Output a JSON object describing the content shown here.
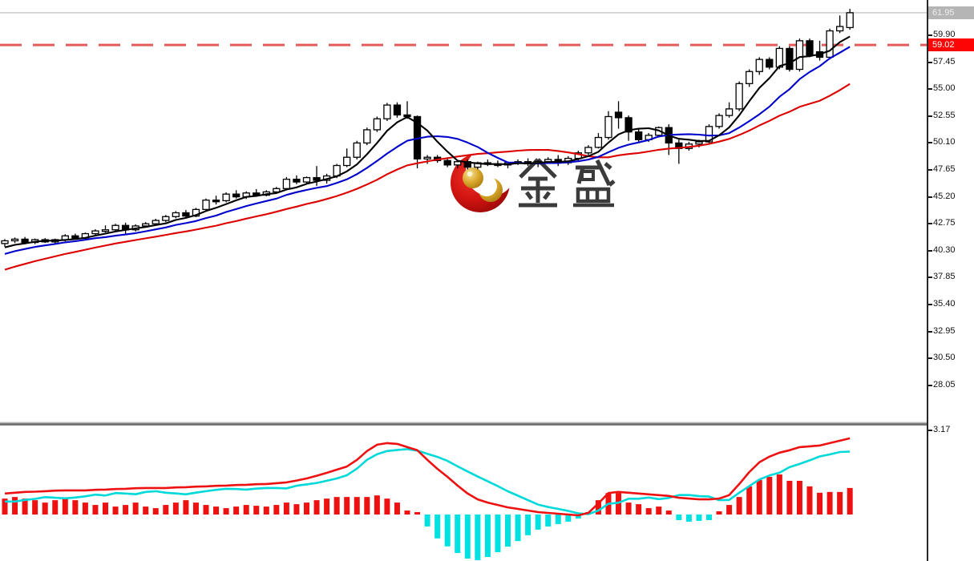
{
  "watermark": {
    "text": "金 盛"
  },
  "price_axis": {
    "tick_labels": [
      "59.90",
      "57.45",
      "55.00",
      "52.55",
      "50.10",
      "47.65",
      "45.20",
      "42.75",
      "40.30",
      "37.85",
      "35.40",
      "32.95",
      "30.50",
      "28.05"
    ],
    "current_price_badge": "61.95",
    "alert_price_badge": "59.02"
  },
  "indicator_axis": {
    "tick_label": "3.17"
  },
  "colors": {
    "up_candle": "#ffffff",
    "down_candle": "#000000",
    "candle_outline": "#000000",
    "ma_fast": "#000000",
    "ma_mid": "#0000cc",
    "ma_slow": "#dd0000",
    "macd_dif": "#ee1111",
    "macd_dea": "#00d9d9",
    "hist_pos": "#ee1111",
    "hist_neg": "#00e2e2",
    "alert_line": "#e45b5b",
    "current_line": "#cbcbcb",
    "logo_red_dark": "#8f0606",
    "logo_red": "#e32016",
    "logo_gold": "#c9971c"
  },
  "chart_data": {
    "type": "candlestick",
    "price_panel": {
      "title": "",
      "y_ticks": [
        59.9,
        57.45,
        55.0,
        52.55,
        50.1,
        47.65,
        45.2,
        42.75,
        40.3,
        37.85,
        35.4,
        32.95,
        30.5,
        28.05
      ],
      "ylim": [
        26.8,
        63.1
      ],
      "horizontal_lines": [
        {
          "value": 61.95,
          "style": "solid"
        },
        {
          "value": 59.02,
          "style": "dashed"
        }
      ],
      "ma_periods": [
        5,
        10,
        20
      ],
      "ma_pre_history": [
        35.5,
        35.8,
        36.1,
        36.4,
        36.7,
        37.0,
        37.3,
        37.6,
        37.9,
        38.2,
        38.5,
        38.8,
        39.1,
        39.4,
        39.7,
        40.0,
        40.2,
        40.4,
        40.5,
        40.7
      ],
      "ohlc": [
        [
          40.95,
          41.35,
          40.65,
          41.2
        ],
        [
          41.2,
          41.5,
          41.0,
          41.35
        ],
        [
          41.35,
          41.55,
          40.9,
          41.05
        ],
        [
          41.05,
          41.4,
          40.9,
          41.3
        ],
        [
          41.3,
          41.45,
          41.0,
          41.1
        ],
        [
          41.1,
          41.4,
          40.95,
          41.3
        ],
        [
          41.3,
          41.8,
          41.15,
          41.65
        ],
        [
          41.65,
          41.85,
          41.3,
          41.45
        ],
        [
          41.45,
          41.95,
          41.35,
          41.85
        ],
        [
          41.85,
          42.25,
          41.7,
          42.1
        ],
        [
          42.1,
          42.6,
          41.95,
          42.2
        ],
        [
          42.2,
          42.75,
          42.1,
          42.6
        ],
        [
          42.6,
          42.85,
          41.85,
          42.2
        ],
        [
          42.2,
          42.7,
          42.05,
          42.55
        ],
        [
          42.55,
          42.9,
          42.4,
          42.75
        ],
        [
          42.75,
          43.2,
          42.6,
          43.05
        ],
        [
          43.05,
          43.55,
          42.9,
          43.4
        ],
        [
          43.4,
          43.9,
          43.25,
          43.75
        ],
        [
          43.75,
          44.0,
          43.3,
          43.45
        ],
        [
          43.45,
          44.2,
          43.35,
          44.05
        ],
        [
          44.05,
          45.05,
          43.95,
          44.9
        ],
        [
          44.9,
          45.3,
          44.5,
          44.85
        ],
        [
          44.85,
          45.6,
          44.7,
          45.45
        ],
        [
          45.45,
          45.8,
          45.05,
          45.2
        ],
        [
          45.2,
          45.7,
          45.0,
          45.55
        ],
        [
          45.55,
          45.9,
          45.2,
          45.35
        ],
        [
          45.35,
          45.8,
          45.25,
          45.65
        ],
        [
          45.65,
          46.1,
          45.5,
          45.95
        ],
        [
          45.95,
          47.0,
          45.85,
          46.8
        ],
        [
          46.8,
          47.15,
          46.35,
          46.55
        ],
        [
          46.55,
          47.05,
          46.4,
          46.95
        ],
        [
          46.95,
          48.0,
          46.2,
          46.7
        ],
        [
          46.7,
          47.3,
          46.4,
          47.1
        ],
        [
          47.1,
          48.2,
          46.9,
          48.05
        ],
        [
          48.05,
          49.6,
          47.9,
          48.8
        ],
        [
          48.8,
          50.3,
          48.6,
          50.1
        ],
        [
          50.1,
          51.5,
          49.9,
          51.3
        ],
        [
          51.3,
          52.5,
          51.1,
          52.3
        ],
        [
          52.3,
          53.75,
          52.1,
          53.55
        ],
        [
          53.55,
          53.8,
          52.4,
          52.65
        ],
        [
          52.65,
          53.9,
          52.3,
          52.5
        ],
        [
          52.5,
          52.6,
          47.8,
          48.65
        ],
        [
          48.65,
          49.0,
          48.2,
          48.8
        ],
        [
          48.8,
          49.0,
          48.3,
          48.5
        ],
        [
          48.5,
          48.8,
          47.9,
          48.1
        ],
        [
          48.1,
          48.5,
          47.8,
          48.4
        ],
        [
          48.4,
          48.6,
          47.7,
          47.9
        ],
        [
          47.9,
          48.4,
          47.7,
          48.3
        ],
        [
          48.3,
          48.6,
          48.0,
          48.2
        ],
        [
          48.2,
          48.5,
          47.9,
          48.1
        ],
        [
          48.1,
          48.4,
          47.8,
          48.3
        ],
        [
          48.3,
          48.6,
          48.1,
          48.4
        ],
        [
          48.4,
          48.7,
          48.0,
          48.2
        ],
        [
          48.2,
          48.5,
          47.9,
          48.4
        ],
        [
          48.4,
          48.8,
          48.2,
          48.6
        ],
        [
          48.6,
          49.0,
          48.0,
          48.3
        ],
        [
          48.3,
          48.9,
          48.1,
          48.7
        ],
        [
          48.7,
          49.4,
          48.5,
          49.2
        ],
        [
          49.2,
          49.9,
          49.0,
          49.7
        ],
        [
          49.7,
          51.0,
          49.6,
          50.6
        ],
        [
          50.6,
          53.0,
          50.4,
          52.5
        ],
        [
          52.9,
          53.9,
          51.4,
          52.4
        ],
        [
          52.4,
          52.6,
          50.3,
          51.1
        ],
        [
          51.1,
          51.4,
          50.2,
          50.4
        ],
        [
          50.4,
          51.0,
          50.2,
          50.8
        ],
        [
          50.8,
          51.6,
          50.6,
          51.5
        ],
        [
          51.5,
          51.8,
          49.0,
          50.1
        ],
        [
          50.1,
          50.4,
          48.2,
          49.6
        ],
        [
          49.6,
          50.2,
          49.4,
          50.0
        ],
        [
          50.0,
          50.4,
          49.7,
          50.2
        ],
        [
          50.2,
          51.8,
          50.0,
          51.6
        ],
        [
          51.6,
          52.8,
          51.4,
          52.6
        ],
        [
          52.6,
          53.8,
          52.4,
          53.2
        ],
        [
          53.2,
          55.7,
          53.0,
          55.5
        ],
        [
          55.5,
          56.8,
          55.2,
          56.6
        ],
        [
          56.6,
          57.9,
          56.3,
          57.7
        ],
        [
          57.7,
          57.9,
          56.8,
          57.0
        ],
        [
          57.0,
          58.9,
          56.8,
          58.7
        ],
        [
          58.7,
          58.9,
          56.6,
          56.8
        ],
        [
          56.8,
          59.6,
          56.6,
          59.4
        ],
        [
          59.4,
          59.6,
          57.9,
          58.1
        ],
        [
          58.4,
          59.4,
          57.6,
          57.9
        ],
        [
          57.9,
          60.5,
          57.7,
          60.3
        ],
        [
          60.3,
          61.7,
          60.1,
          60.7
        ],
        [
          60.6,
          62.3,
          60.4,
          61.95
        ]
      ]
    },
    "macd_panel": {
      "y_tick": 3.17,
      "dea_formula": "dif - hist/2",
      "dif": [
        0.79,
        0.82,
        0.85,
        0.86,
        0.88,
        0.9,
        0.91,
        0.91,
        0.91,
        0.93,
        0.94,
        0.96,
        0.97,
        0.99,
        1.0,
        1.0,
        1.0,
        1.02,
        1.03,
        1.05,
        1.06,
        1.08,
        1.09,
        1.11,
        1.12,
        1.14,
        1.15,
        1.18,
        1.21,
        1.28,
        1.36,
        1.46,
        1.57,
        1.69,
        1.81,
        2.06,
        2.39,
        2.63,
        2.69,
        2.66,
        2.54,
        2.42,
        2.06,
        1.72,
        1.42,
        1.09,
        0.79,
        0.57,
        0.45,
        0.36,
        0.27,
        0.21,
        0.15,
        0.09,
        0.06,
        0.03,
        0.0,
        -0.03,
        0.06,
        0.42,
        0.81,
        0.85,
        0.82,
        0.79,
        0.76,
        0.73,
        0.7,
        0.63,
        0.6,
        0.57,
        0.57,
        0.6,
        0.73,
        1.15,
        1.6,
        1.97,
        2.18,
        2.33,
        2.42,
        2.54,
        2.57,
        2.6,
        2.69,
        2.78,
        2.87
      ],
      "hist": [
        0.6,
        0.66,
        0.6,
        0.54,
        0.45,
        0.54,
        0.6,
        0.54,
        0.45,
        0.36,
        0.45,
        0.3,
        0.36,
        0.45,
        0.3,
        0.24,
        0.36,
        0.45,
        0.54,
        0.45,
        0.36,
        0.3,
        0.24,
        0.3,
        0.36,
        0.33,
        0.3,
        0.36,
        0.45,
        0.39,
        0.45,
        0.54,
        0.6,
        0.66,
        0.66,
        0.66,
        0.66,
        0.72,
        0.6,
        0.45,
        0.15,
        0.03,
        -0.45,
        -0.9,
        -1.2,
        -1.45,
        -1.66,
        -1.72,
        -1.6,
        -1.42,
        -1.21,
        -1.0,
        -0.78,
        -0.57,
        -0.45,
        -0.36,
        -0.27,
        -0.15,
        0.09,
        0.54,
        0.81,
        0.81,
        0.45,
        0.39,
        0.24,
        0.3,
        0.15,
        -0.21,
        -0.27,
        -0.24,
        -0.21,
        0.12,
        0.36,
        0.66,
        1.06,
        1.3,
        1.42,
        1.51,
        1.27,
        1.27,
        1.06,
        0.82,
        0.85,
        0.85,
        1.0
      ]
    }
  }
}
